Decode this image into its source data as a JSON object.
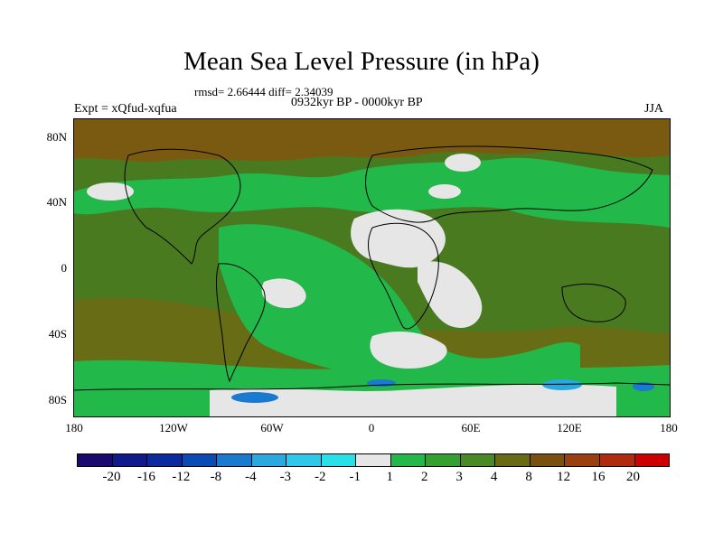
{
  "title": "Mean Sea Level Pressure (in hPa)",
  "stats": "rmsd= 2.66444 diff= 2.34039",
  "experiment": "Expt = xQfud-xqfua",
  "period": "0932kyr BP - 0000kyr BP",
  "season": "JJA",
  "y_ticks": [
    "80N",
    "40N",
    "0",
    "40S",
    "80S"
  ],
  "x_ticks": [
    "180",
    "120W",
    "60W",
    "0",
    "60E",
    "120E",
    "180"
  ],
  "legend": {
    "labels": [
      "-20",
      "-16",
      "-12",
      "-8",
      "-4",
      "-3",
      "-2",
      "-1",
      "1",
      "2",
      "3",
      "4",
      "8",
      "12",
      "16",
      "20"
    ],
    "colors": [
      "#1a0a6e",
      "#101a8c",
      "#0a2aa0",
      "#0a4cb4",
      "#1a7ad0",
      "#2aa8e0",
      "#30c8e8",
      "#28e0e8",
      "#e6e6e6",
      "#22b84a",
      "#33a030",
      "#4a8a24",
      "#6a6a14",
      "#7a5010",
      "#9a4010",
      "#b02a10",
      "#cc0000"
    ]
  },
  "map_colors": {
    "ocean_base": "#4a7a20",
    "polar": "#7a5a10",
    "band_green": "#22b84a",
    "band_mid": "#33a030",
    "neutral": "#e6e6e6",
    "blue_low": "#2aa8e0",
    "blue_deep": "#1a7ad0"
  }
}
